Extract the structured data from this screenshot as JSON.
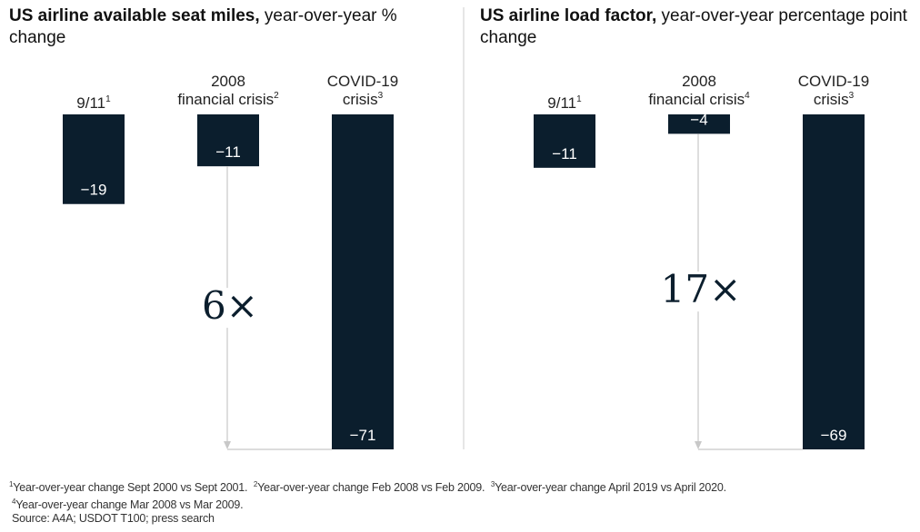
{
  "chart_data": [
    {
      "type": "bar",
      "title_bold": "US airline available seat miles,",
      "title_rest": " year-over-year % change",
      "categories": [
        {
          "line1": "",
          "line2": "9/11",
          "sup": "1"
        },
        {
          "line1": "2008",
          "line2": "financial crisis",
          "sup": "2"
        },
        {
          "line1": "COVID-19",
          "line2": "crisis",
          "sup": "3"
        }
      ],
      "values": [
        -19,
        -11,
        -71
      ],
      "labels": [
        "−19",
        "−11",
        "−71"
      ],
      "multiplier": "6×",
      "ylim": [
        -71,
        0
      ]
    },
    {
      "type": "bar",
      "title_bold": "US airline load factor,",
      "title_rest": " year-over-year percentage point change",
      "categories": [
        {
          "line1": "",
          "line2": "9/11",
          "sup": "1"
        },
        {
          "line1": "2008",
          "line2": "financial crisis",
          "sup": "4"
        },
        {
          "line1": "COVID-19",
          "line2": "crisis",
          "sup": "3"
        }
      ],
      "values": [
        -11,
        -4,
        -69
      ],
      "labels": [
        "−11",
        "−4",
        "−69"
      ],
      "multiplier": "17×",
      "ylim": [
        -69,
        0
      ]
    }
  ],
  "footnotes": {
    "n1": "Year-over-year change Sept 2000 vs Sept 2001.",
    "n2": "Year-over-year change Feb 2008 vs Feb 2009.",
    "n3": "Year-over-year change April 2019 vs April 2020.",
    "n4": "Year-over-year change Mar 2008 vs Mar 2009.",
    "source": "Source: A4A; USDOT T100; press search"
  },
  "colors": {
    "bar": "#0b1e2d",
    "arrow": "#c8c8c8"
  }
}
